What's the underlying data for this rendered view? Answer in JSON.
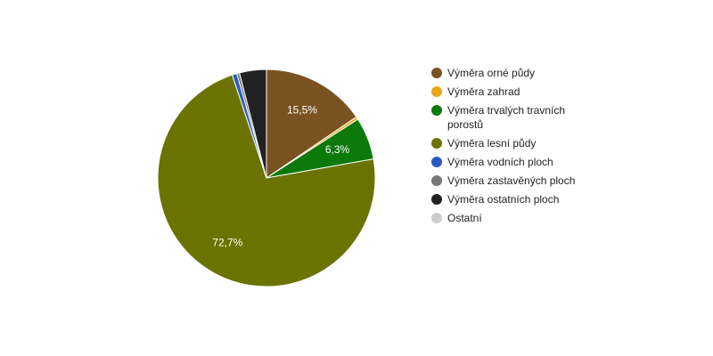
{
  "chart_data": {
    "type": "pie",
    "categories": [
      "Výměra orné půdy",
      "Výměra zahrad",
      "Výměra trvalých travních porostů",
      "Výměra lesní půdy",
      "Výměra vodních ploch",
      "Výměra zastavěných ploch",
      "Výměra ostatních ploch",
      "Ostatní"
    ],
    "values": [
      15.5,
      0.4,
      6.3,
      72.7,
      0.7,
      0.4,
      4.0,
      0
    ],
    "value_labels": [
      "15,5%",
      null,
      "6,3%",
      "72,7%",
      null,
      null,
      null,
      null
    ],
    "colors": [
      "#7b5322",
      "#e6a817",
      "#0b7a0b",
      "#6b7300",
      "#2a5bbf",
      "#777777",
      "#222222",
      "#cccccc"
    ],
    "legend": "right"
  }
}
